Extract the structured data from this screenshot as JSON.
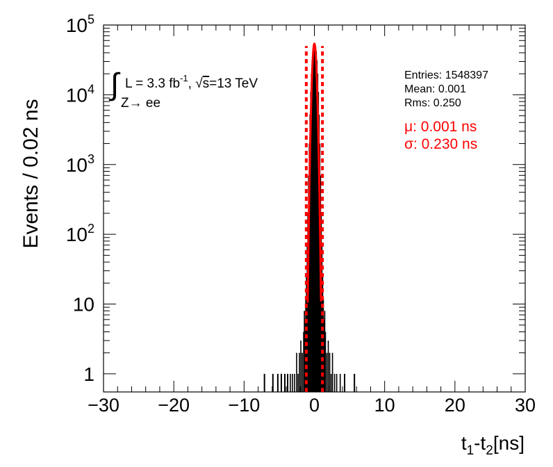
{
  "chart_data": {
    "type": "histogram",
    "title": "",
    "xlabel": {
      "main": "t",
      "sub1": "1",
      "mid": "-t",
      "sub2": "2",
      "tail": "[ns]"
    },
    "ylabel": "Events / 0.02 ns",
    "x_ticks": [
      "−30",
      "−20",
      "−10",
      "0",
      "10",
      "20",
      "30"
    ],
    "x_tick_values": [
      -30,
      -20,
      -10,
      0,
      10,
      20,
      30
    ],
    "xlim": [
      -30,
      30
    ],
    "y_scale": "log",
    "ylim": [
      0.55,
      100000
    ],
    "y_ticks": [
      {
        "value": 1,
        "base": "1",
        "exp": ""
      },
      {
        "value": 10,
        "base": "10",
        "exp": ""
      },
      {
        "value": 100,
        "base": "10",
        "exp": "2"
      },
      {
        "value": 1000,
        "base": "10",
        "exp": "3"
      },
      {
        "value": 10000,
        "base": "10",
        "exp": "4"
      },
      {
        "value": 100000,
        "base": "10",
        "exp": "5"
      }
    ],
    "annotations": {
      "integral_symbol": "∫",
      "lumi_prefix": "L = 3.3 fb",
      "lumi_exp": "-1",
      "lumi_sep": ", ",
      "sqrt_symbol": "√",
      "sqrt_arg": "s",
      "energy": "=13 TeV",
      "process": "Z→ ee"
    },
    "stats": {
      "entries": "Entries: 1548397",
      "mean": "Mean: 0.001",
      "rms": "Rms: 0.250"
    },
    "fit": {
      "mu_label": "μ: 0.001 ns",
      "sigma_label": "σ: 0.230 ns",
      "mu": 0.001,
      "sigma": 0.23,
      "peak": 54000,
      "dashed_lines_x": [
        -1.15,
        1.15
      ],
      "color": "#ff0000"
    },
    "series": [
      {
        "style": "histogram",
        "color": "#000000",
        "bins": [
          [
            -7.2,
            -7.0,
            1
          ],
          [
            -6.0,
            -5.8,
            1
          ],
          [
            -5.3,
            -5.1,
            1
          ],
          [
            -4.8,
            -4.6,
            1
          ],
          [
            -4.3,
            -4.1,
            1
          ],
          [
            -3.9,
            -3.7,
            1
          ],
          [
            -3.5,
            -3.4,
            1
          ],
          [
            -3.2,
            -3.1,
            1
          ],
          [
            -2.9,
            -2.8,
            1
          ],
          [
            -2.6,
            -2.5,
            2
          ],
          [
            -2.4,
            -2.3,
            1
          ],
          [
            -2.2,
            -2.1,
            2
          ],
          [
            -2.0,
            -1.9,
            3
          ],
          [
            -1.8,
            -1.7,
            2
          ],
          [
            -1.6,
            -1.5,
            4
          ],
          [
            -1.5,
            -1.4,
            8
          ],
          [
            -1.4,
            -1.3,
            6
          ],
          [
            -1.3,
            -1.2,
            12
          ],
          [
            -1.2,
            -1.1,
            25
          ],
          [
            -1.1,
            -1.0,
            70
          ],
          [
            -1.0,
            -0.9,
            200
          ],
          [
            -0.9,
            -0.8,
            700
          ],
          [
            -0.8,
            -0.7,
            2000
          ],
          [
            -0.7,
            -0.6,
            5200
          ],
          [
            -0.6,
            -0.5,
            11000
          ],
          [
            -0.5,
            -0.4,
            20000
          ],
          [
            -0.4,
            -0.3,
            31000
          ],
          [
            -0.3,
            -0.2,
            42000
          ],
          [
            -0.2,
            -0.1,
            50000
          ],
          [
            -0.1,
            0.0,
            54000
          ],
          [
            0.0,
            0.1,
            54000
          ],
          [
            0.1,
            0.2,
            50000
          ],
          [
            0.2,
            0.3,
            42000
          ],
          [
            0.3,
            0.4,
            31000
          ],
          [
            0.4,
            0.5,
            20000
          ],
          [
            0.5,
            0.6,
            11000
          ],
          [
            0.6,
            0.7,
            5200
          ],
          [
            0.7,
            0.8,
            2000
          ],
          [
            0.8,
            0.9,
            700
          ],
          [
            0.9,
            1.0,
            200
          ],
          [
            1.0,
            1.1,
            70
          ],
          [
            1.1,
            1.2,
            25
          ],
          [
            1.2,
            1.3,
            12
          ],
          [
            1.3,
            1.4,
            6
          ],
          [
            1.4,
            1.5,
            8
          ],
          [
            1.5,
            1.6,
            4
          ],
          [
            1.7,
            1.8,
            2
          ],
          [
            1.9,
            2.0,
            3
          ],
          [
            2.1,
            2.2,
            2
          ],
          [
            2.3,
            2.4,
            1
          ],
          [
            2.5,
            2.6,
            2
          ],
          [
            2.8,
            2.9,
            1
          ],
          [
            3.1,
            3.2,
            1
          ],
          [
            3.6,
            3.7,
            1
          ],
          [
            4.2,
            4.4,
            1
          ],
          [
            5.6,
            5.8,
            1
          ]
        ]
      }
    ]
  }
}
